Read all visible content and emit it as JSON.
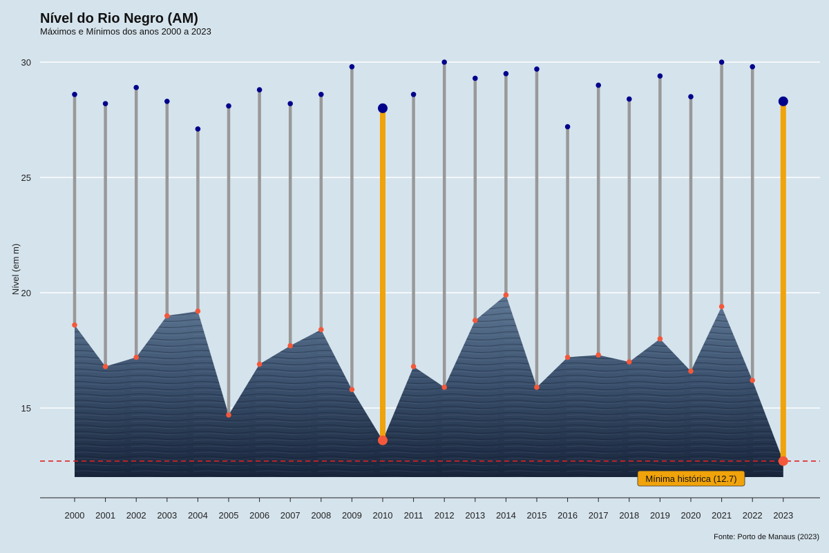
{
  "page": {
    "title": "Nível do Rio Negro (AM)",
    "subtitle": "Máximos e Mínimos dos anos 2000 a 2023",
    "caption": "Fonte: Porto de Manaus (2023)"
  },
  "chart_data": {
    "type": "line",
    "title": "Nível do Rio Negro (AM)",
    "subtitle": "Máximos e Mínimos dos anos 2000 a 2023",
    "xlabel": "",
    "ylabel": "Nível (em m)",
    "ylim": [
      11.2,
      31.5
    ],
    "yticks": [
      15,
      20,
      25,
      30
    ],
    "grid": "horizontal",
    "categories": [
      "2000",
      "2001",
      "2002",
      "2003",
      "2004",
      "2005",
      "2006",
      "2007",
      "2008",
      "2009",
      "2010",
      "2011",
      "2012",
      "2013",
      "2014",
      "2015",
      "2016",
      "2017",
      "2018",
      "2019",
      "2020",
      "2021",
      "2022",
      "2023"
    ],
    "series": [
      {
        "values": [
          28.6,
          28.2,
          28.9,
          28.3,
          27.1,
          28.1,
          28.8,
          28.2,
          28.6,
          29.8,
          28.0,
          28.6,
          30.0,
          29.3,
          29.5,
          29.7,
          27.2,
          29.0,
          28.4,
          29.4,
          28.5,
          30.0,
          29.8,
          28.3
        ],
        "color": "#00008b"
      },
      {
        "values": [
          18.6,
          16.8,
          17.2,
          19.0,
          19.2,
          14.7,
          16.9,
          17.7,
          18.4,
          15.8,
          13.6,
          16.8,
          15.9,
          18.8,
          19.9,
          15.9,
          17.2,
          17.3,
          17.0,
          18.0,
          16.6,
          19.4,
          16.2,
          12.7
        ],
        "color": "#f4583a"
      }
    ],
    "highlight_years": [
      "2010",
      "2023"
    ],
    "highlight_color": "#f0a30a",
    "segment_color": "#999999",
    "reference_line": {
      "value": 12.7,
      "color": "#e02020",
      "style": "dashed",
      "label": "Mínima histórica (12.7)",
      "label_fill": "#f0a30a"
    }
  }
}
